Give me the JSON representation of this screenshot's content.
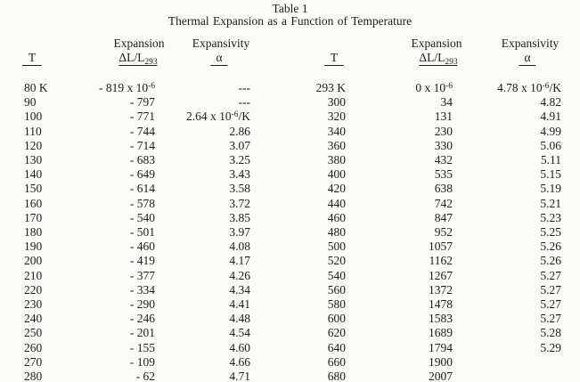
{
  "title": "Table 1",
  "subtitle": "Thermal Expansion as a Function of Temperature",
  "colors": {
    "paper": "#fbfbf8",
    "ink": "#1c1c1c"
  },
  "table": {
    "headers": {
      "groups": [
        "",
        "Expansion",
        "Expansivity",
        "",
        "Expansion",
        "Expansivity"
      ],
      "subs": [
        "T",
        "ΔL/L_{293}",
        "α",
        "T",
        "ΔL/L_{293}",
        "α"
      ]
    },
    "rows": [
      [
        "80 K",
        "- 819 x 10^{-6}",
        "---",
        "293 K",
        "0 x 10^{-6}",
        "4.78 x 10^{-6}/K"
      ],
      [
        "90",
        "- 797",
        "---",
        "300",
        "34",
        "4.82"
      ],
      [
        "100",
        "- 771",
        "2.64 x 10^{-6}/K",
        "320",
        "131",
        "4.91"
      ],
      [
        "110",
        "- 744",
        "2.86",
        "340",
        "230",
        "4.99"
      ],
      [
        "120",
        "- 714",
        "3.07",
        "360",
        "330",
        "5.06"
      ],
      [
        "130",
        "- 683",
        "3.25",
        "380",
        "432",
        "5.11"
      ],
      [
        "140",
        "- 649",
        "3.43",
        "400",
        "535",
        "5.15"
      ],
      [
        "150",
        "- 614",
        "3.58",
        "420",
        "638",
        "5.19"
      ],
      [
        "160",
        "- 578",
        "3.72",
        "440",
        "742",
        "5.21"
      ],
      [
        "170",
        "- 540",
        "3.85",
        "460",
        "847",
        "5.23"
      ],
      [
        "180",
        "- 501",
        "3.97",
        "480",
        "952",
        "5.25"
      ],
      [
        "190",
        "- 460",
        "4.08",
        "500",
        "1057",
        "5.26"
      ],
      [
        "200",
        "- 419",
        "4.17",
        "520",
        "1162",
        "5.26"
      ],
      [
        "210",
        "- 377",
        "4.26",
        "540",
        "1267",
        "5.27"
      ],
      [
        "220",
        "- 334",
        "4.34",
        "560",
        "1372",
        "5.27"
      ],
      [
        "230",
        "- 290",
        "4.41",
        "580",
        "1478",
        "5.27"
      ],
      [
        "240",
        "- 246",
        "4.48",
        "600",
        "1583",
        "5.27"
      ],
      [
        "250",
        "- 201",
        "4.54",
        "620",
        "1689",
        "5.28"
      ],
      [
        "260",
        "- 155",
        "4.60",
        "640",
        "1794",
        "5.29"
      ],
      [
        "270",
        "- 109",
        "4.66",
        "660",
        "1900",
        ""
      ],
      [
        "280",
        "- 62",
        "4.71",
        "680",
        "2007",
        ""
      ]
    ]
  }
}
